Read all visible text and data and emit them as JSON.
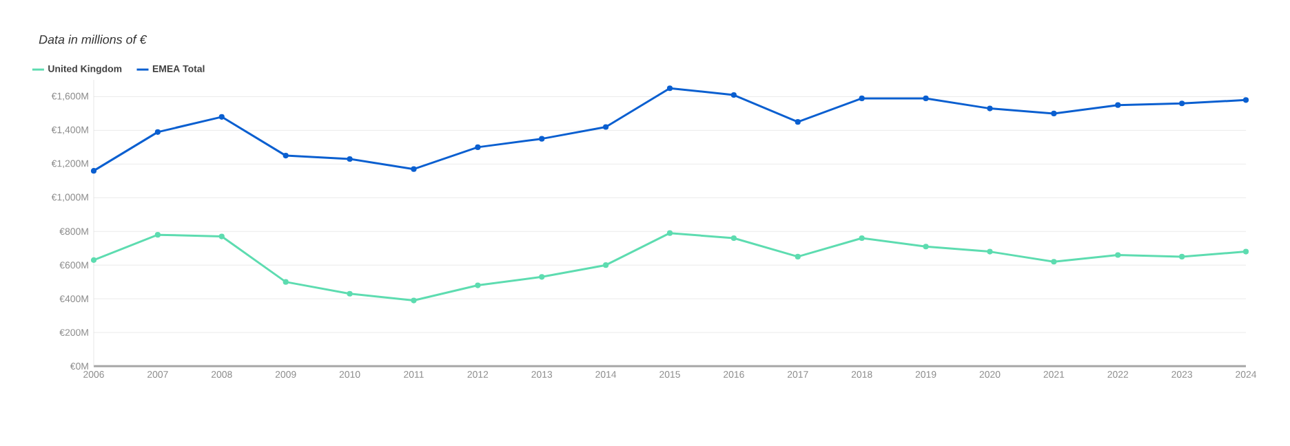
{
  "chart_data": {
    "type": "line",
    "title": "Data in millions of €",
    "categories": [
      "2006",
      "2007",
      "2008",
      "2009",
      "2010",
      "2011",
      "2012",
      "2013",
      "2014",
      "2015",
      "2016",
      "2017",
      "2018",
      "2019",
      "2020",
      "2021",
      "2022",
      "2023",
      "2024"
    ],
    "series": [
      {
        "name": "United Kingdom",
        "color": "#5ddcb0",
        "values": [
          630,
          780,
          770,
          500,
          430,
          390,
          480,
          530,
          600,
          790,
          760,
          650,
          760,
          710,
          680,
          620,
          660,
          650,
          680
        ]
      },
      {
        "name": "EMEA Total",
        "color": "#0a5fd0",
        "values": [
          1160,
          1390,
          1480,
          1250,
          1230,
          1170,
          1300,
          1350,
          1420,
          1650,
          1610,
          1450,
          1590,
          1590,
          1530,
          1500,
          1550,
          1560,
          1580
        ]
      }
    ],
    "ylim": [
      0,
      1700
    ],
    "yticks": [
      {
        "value": 0,
        "label": "€0M"
      },
      {
        "value": 200,
        "label": "€200M"
      },
      {
        "value": 400,
        "label": "€400M"
      },
      {
        "value": 600,
        "label": "€600M"
      },
      {
        "value": 800,
        "label": "€800M"
      },
      {
        "value": 1000,
        "label": "€1,000M"
      },
      {
        "value": 1200,
        "label": "€1,200M"
      },
      {
        "value": 1400,
        "label": "€1,400M"
      },
      {
        "value": 1600,
        "label": "€1,600M"
      }
    ],
    "grid": "y",
    "legend": "top left",
    "marker": "circle",
    "line_style": "solid"
  }
}
